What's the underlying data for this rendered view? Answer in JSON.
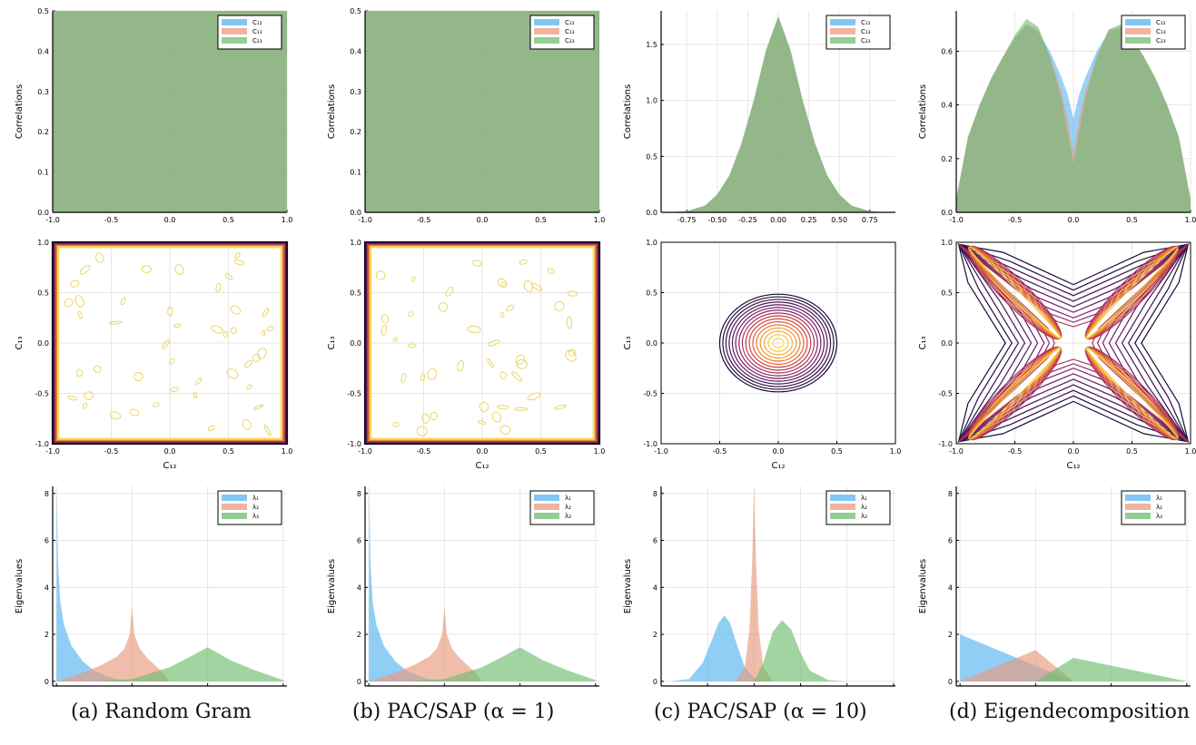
{
  "captions": [
    "(a) Random Gram",
    "(b) PAC/SAP (α = 1)",
    "(c) PAC/SAP (α = 10)",
    "(d) Eigendecomposition"
  ],
  "colors": {
    "s1": "#56b4f0",
    "s2": "#ea9a7e",
    "s3": "#6fbd6f"
  },
  "chart_data": [
    {
      "type": "area",
      "panel": "a-correlations",
      "ylabel": "Correlations",
      "xlim": [
        -1,
        1
      ],
      "ylim": [
        0,
        0.5
      ],
      "xticks": [
        "-1.0",
        "-0.5",
        "0.0",
        "0.5",
        "1.0"
      ],
      "yticks": [
        "0.0",
        "0.1",
        "0.2",
        "0.3",
        "0.4",
        "0.5"
      ],
      "legend": [
        "C₁₂",
        "C₁₃",
        "C₂₃"
      ],
      "legend_position": "top-right",
      "x": [
        -1.0,
        -0.5,
        0.0,
        0.5,
        1.0
      ],
      "series": [
        {
          "name": "C₁₂",
          "values": [
            0.5,
            0.5,
            0.5,
            0.5,
            0.5
          ]
        },
        {
          "name": "C₁₃",
          "values": [
            0.5,
            0.5,
            0.5,
            0.5,
            0.5
          ]
        },
        {
          "name": "C₂₃",
          "values": [
            0.5,
            0.5,
            0.5,
            0.5,
            0.5
          ]
        }
      ]
    },
    {
      "type": "area",
      "panel": "b-correlations",
      "ylabel": "Correlations",
      "xlim": [
        -1,
        1
      ],
      "ylim": [
        0,
        0.5
      ],
      "xticks": [
        "-1.0",
        "-0.5",
        "0.0",
        "0.5",
        "1.0"
      ],
      "yticks": [
        "0.0",
        "0.1",
        "0.2",
        "0.3",
        "0.4",
        "0.5"
      ],
      "legend": [
        "C₁₂",
        "C₁₃",
        "C₂₃"
      ],
      "legend_position": "top-right",
      "x": [
        -1.0,
        -0.5,
        0.0,
        0.5,
        1.0
      ],
      "series": [
        {
          "name": "C₁₂",
          "values": [
            0.5,
            0.5,
            0.5,
            0.5,
            0.5
          ]
        },
        {
          "name": "C₁₃",
          "values": [
            0.5,
            0.5,
            0.5,
            0.5,
            0.5
          ]
        },
        {
          "name": "C₂₃",
          "values": [
            0.5,
            0.5,
            0.5,
            0.5,
            0.5
          ]
        }
      ]
    },
    {
      "type": "area",
      "panel": "c-correlations",
      "ylabel": "Correlations",
      "xlim": [
        -0.96,
        0.96
      ],
      "ylim": [
        0,
        1.8
      ],
      "xticks": [
        "-0.75",
        "-0.50",
        "-0.25",
        "0.00",
        "0.25",
        "0.50",
        "0.75"
      ],
      "yticks": [
        "0.0",
        "0.5",
        "1.0",
        "1.5"
      ],
      "legend": [
        "C₁₂",
        "C₁₃",
        "C₂₃"
      ],
      "legend_position": "top-right",
      "x": [
        -0.9,
        -0.75,
        -0.6,
        -0.5,
        -0.4,
        -0.3,
        -0.2,
        -0.1,
        0.0,
        0.1,
        0.2,
        0.3,
        0.4,
        0.5,
        0.6,
        0.75,
        0.9
      ],
      "series": [
        {
          "name": "C₁₂",
          "values": [
            0.0,
            0.01,
            0.06,
            0.16,
            0.33,
            0.62,
            1.0,
            1.45,
            1.75,
            1.45,
            1.0,
            0.62,
            0.33,
            0.16,
            0.06,
            0.01,
            0.0
          ]
        },
        {
          "name": "C₁₃",
          "values": [
            0.0,
            0.01,
            0.06,
            0.16,
            0.33,
            0.62,
            1.0,
            1.45,
            1.75,
            1.45,
            1.0,
            0.62,
            0.33,
            0.16,
            0.06,
            0.01,
            0.0
          ]
        },
        {
          "name": "C₂₃",
          "values": [
            0.0,
            0.01,
            0.06,
            0.16,
            0.33,
            0.62,
            1.0,
            1.45,
            1.75,
            1.45,
            1.0,
            0.62,
            0.33,
            0.16,
            0.06,
            0.01,
            0.0
          ]
        }
      ]
    },
    {
      "type": "area",
      "panel": "d-correlations",
      "ylabel": "Correlations",
      "xlim": [
        -1,
        1
      ],
      "ylim": [
        0,
        0.75
      ],
      "xticks": [
        "-1.0",
        "-0.5",
        "0.0",
        "0.5",
        "1.0"
      ],
      "yticks": [
        "0.0",
        "0.2",
        "0.4",
        "0.6"
      ],
      "legend": [
        "C₁₂",
        "C₁₃",
        "C₂₃"
      ],
      "legend_position": "top-right",
      "x": [
        -1.0,
        -0.9,
        -0.8,
        -0.7,
        -0.6,
        -0.5,
        -0.4,
        -0.3,
        -0.2,
        -0.1,
        -0.05,
        0.0,
        0.05,
        0.1,
        0.2,
        0.3,
        0.4,
        0.5,
        0.6,
        0.7,
        0.8,
        0.9,
        1.0
      ],
      "series": [
        {
          "name": "C₁₂",
          "values": [
            0.05,
            0.28,
            0.4,
            0.5,
            0.58,
            0.65,
            0.7,
            0.67,
            0.6,
            0.5,
            0.44,
            0.35,
            0.44,
            0.5,
            0.6,
            0.67,
            0.69,
            0.65,
            0.58,
            0.5,
            0.4,
            0.28,
            0.05
          ]
        },
        {
          "name": "C₁₃",
          "values": [
            0.05,
            0.28,
            0.4,
            0.5,
            0.58,
            0.65,
            0.7,
            0.68,
            0.58,
            0.45,
            0.35,
            0.22,
            0.35,
            0.45,
            0.58,
            0.68,
            0.69,
            0.65,
            0.58,
            0.5,
            0.4,
            0.28,
            0.05
          ]
        },
        {
          "name": "C₂₃",
          "values": [
            0.05,
            0.28,
            0.4,
            0.5,
            0.58,
            0.66,
            0.72,
            0.69,
            0.58,
            0.42,
            0.3,
            0.18,
            0.3,
            0.42,
            0.58,
            0.68,
            0.7,
            0.65,
            0.58,
            0.5,
            0.4,
            0.28,
            0.05
          ]
        }
      ]
    },
    {
      "type": "contour",
      "panel": "a-contour",
      "xlabel": "C₁₂",
      "ylabel": "C₁₃",
      "xlim": [
        -1,
        1
      ],
      "ylim": [
        -1,
        1
      ],
      "xticks": [
        "-1.0",
        "-0.5",
        "0.0",
        "0.5",
        "1.0"
      ],
      "yticks": [
        "-1.0",
        "-0.5",
        "0.0",
        "0.5",
        "1.0"
      ],
      "pattern": "uniform"
    },
    {
      "type": "contour",
      "panel": "b-contour",
      "xlabel": "C₁₂",
      "ylabel": "C₁₃",
      "xlim": [
        -1,
        1
      ],
      "ylim": [
        -1,
        1
      ],
      "xticks": [
        "-1.0",
        "-0.5",
        "0.0",
        "0.5",
        "1.0"
      ],
      "yticks": [
        "-1.0",
        "-0.5",
        "0.0",
        "0.5",
        "1.0"
      ],
      "pattern": "uniform"
    },
    {
      "type": "contour",
      "panel": "c-contour",
      "xlabel": "C₁₂",
      "ylabel": "C₁₃",
      "xlim": [
        -1,
        1
      ],
      "ylim": [
        -1,
        1
      ],
      "xticks": [
        "-1.0",
        "-0.5",
        "0.0",
        "0.5",
        "1.0"
      ],
      "yticks": [
        "-1.0",
        "-0.5",
        "0.0",
        "0.5",
        "1.0"
      ],
      "pattern": "gaussian",
      "outer_radius": 0.5,
      "levels": 16
    },
    {
      "type": "contour",
      "panel": "d-contour",
      "xlabel": "C₁₂",
      "ylabel": "C₁₃",
      "xlim": [
        -1,
        1
      ],
      "ylim": [
        -1,
        1
      ],
      "xticks": [
        "-1.0",
        "-0.5",
        "0.0",
        "0.5",
        "1.0"
      ],
      "yticks": [
        "-1.0",
        "-0.5",
        "0.0",
        "0.5",
        "1.0"
      ],
      "pattern": "x-shape"
    },
    {
      "type": "area",
      "panel": "a-eigen",
      "ylabel": "Eigenvalues",
      "xlim": [
        -0.05,
        3.05
      ],
      "ylim": [
        -0.2,
        8.3
      ],
      "xticks": [
        "0",
        "1",
        "2",
        "3"
      ],
      "yticks": [
        "0",
        "2",
        "4",
        "6",
        "8"
      ],
      "legend": [
        "λ₁",
        "λ₂",
        "λ₃"
      ],
      "legend_position": "top-right",
      "series": [
        {
          "name": "λ₁",
          "x": [
            0,
            0.005,
            0.02,
            0.05,
            0.1,
            0.2,
            0.35,
            0.5,
            0.75,
            1.0
          ],
          "values": [
            0,
            8.3,
            5.2,
            3.4,
            2.4,
            1.5,
            0.85,
            0.45,
            0.12,
            0
          ]
        },
        {
          "name": "λ₂",
          "x": [
            0,
            0.3,
            0.6,
            0.8,
            0.9,
            0.97,
            1.0,
            1.03,
            1.1,
            1.2,
            1.4,
            1.5
          ],
          "values": [
            0,
            0.3,
            0.7,
            1.05,
            1.4,
            2.0,
            3.2,
            2.0,
            1.4,
            1.0,
            0.4,
            0
          ]
        },
        {
          "name": "λ₃",
          "x": [
            0.5,
            1.0,
            1.5,
            1.8,
            2.0,
            2.3,
            2.6,
            3.0
          ],
          "values": [
            0,
            0.1,
            0.6,
            1.1,
            1.45,
            0.9,
            0.5,
            0.05
          ]
        }
      ]
    },
    {
      "type": "area",
      "panel": "b-eigen",
      "ylabel": "Eigenvalues",
      "xlim": [
        -0.05,
        3.05
      ],
      "ylim": [
        -0.2,
        8.3
      ],
      "xticks": [
        "0",
        "1",
        "2",
        "3"
      ],
      "yticks": [
        "0",
        "2",
        "4",
        "6",
        "8"
      ],
      "legend": [
        "λ₁",
        "λ₂",
        "λ₃"
      ],
      "legend_position": "top-right",
      "series": [
        {
          "name": "λ₁",
          "x": [
            0,
            0.005,
            0.02,
            0.05,
            0.1,
            0.2,
            0.35,
            0.5,
            0.75,
            1.0
          ],
          "values": [
            0,
            8.3,
            5.2,
            3.4,
            2.4,
            1.5,
            0.85,
            0.45,
            0.12,
            0
          ]
        },
        {
          "name": "λ₂",
          "x": [
            0,
            0.3,
            0.6,
            0.8,
            0.9,
            0.97,
            1.0,
            1.03,
            1.1,
            1.2,
            1.4,
            1.5
          ],
          "values": [
            0,
            0.3,
            0.7,
            1.05,
            1.4,
            2.0,
            3.2,
            2.0,
            1.4,
            1.0,
            0.4,
            0
          ]
        },
        {
          "name": "λ₃",
          "x": [
            0.5,
            1.0,
            1.5,
            1.8,
            2.0,
            2.3,
            2.6,
            3.0
          ],
          "values": [
            0,
            0.1,
            0.6,
            1.1,
            1.45,
            0.9,
            0.5,
            0.05
          ]
        }
      ]
    },
    {
      "type": "area",
      "panel": "c-eigen",
      "ylabel": "Eigenvalues",
      "xlim": [
        0,
        2.52
      ],
      "ylim": [
        -0.2,
        8.3
      ],
      "xticks": [
        "0.5",
        "1.0",
        "1.5",
        "2.0",
        "2.5"
      ],
      "yticks": [
        "0",
        "2",
        "4",
        "6",
        "8"
      ],
      "legend": [
        "λ₁",
        "λ₂",
        "λ₃"
      ],
      "legend_position": "top-right",
      "series": [
        {
          "name": "λ₁",
          "x": [
            0.1,
            0.3,
            0.45,
            0.55,
            0.62,
            0.68,
            0.74,
            0.82,
            0.9,
            1.0,
            1.1
          ],
          "values": [
            0,
            0.1,
            0.8,
            1.8,
            2.5,
            2.8,
            2.5,
            1.5,
            0.6,
            0.15,
            0
          ]
        },
        {
          "name": "λ₂",
          "x": [
            0.8,
            0.9,
            0.95,
            0.98,
            1.0,
            1.02,
            1.05,
            1.1,
            1.2
          ],
          "values": [
            0,
            0.6,
            2.2,
            5.2,
            8.3,
            5.2,
            2.2,
            0.6,
            0
          ]
        },
        {
          "name": "λ₃",
          "x": [
            1.0,
            1.1,
            1.2,
            1.3,
            1.4,
            1.5,
            1.6,
            1.8,
            2.0
          ],
          "values": [
            0,
            0.8,
            2.1,
            2.6,
            2.2,
            1.2,
            0.45,
            0.05,
            0
          ]
        }
      ]
    },
    {
      "type": "area",
      "panel": "d-eigen",
      "ylabel": "Eigenvalues",
      "xlim": [
        -0.05,
        3.05
      ],
      "ylim": [
        -0.2,
        8.3
      ],
      "xticks": [
        "0",
        "1",
        "2",
        "3"
      ],
      "yticks": [
        "0",
        "2",
        "4",
        "6",
        "8"
      ],
      "legend": [
        "λ₁",
        "λ₂",
        "λ₃"
      ],
      "legend_position": "top-right",
      "series": [
        {
          "name": "λ₁",
          "x": [
            0,
            1.5
          ],
          "values": [
            2.0,
            0
          ]
        },
        {
          "name": "λ₂",
          "x": [
            0,
            1.0,
            1.5
          ],
          "values": [
            0,
            1.33,
            0
          ]
        },
        {
          "name": "λ₃",
          "x": [
            1.0,
            1.5,
            3.0
          ],
          "values": [
            0,
            1.0,
            0
          ]
        }
      ]
    }
  ]
}
